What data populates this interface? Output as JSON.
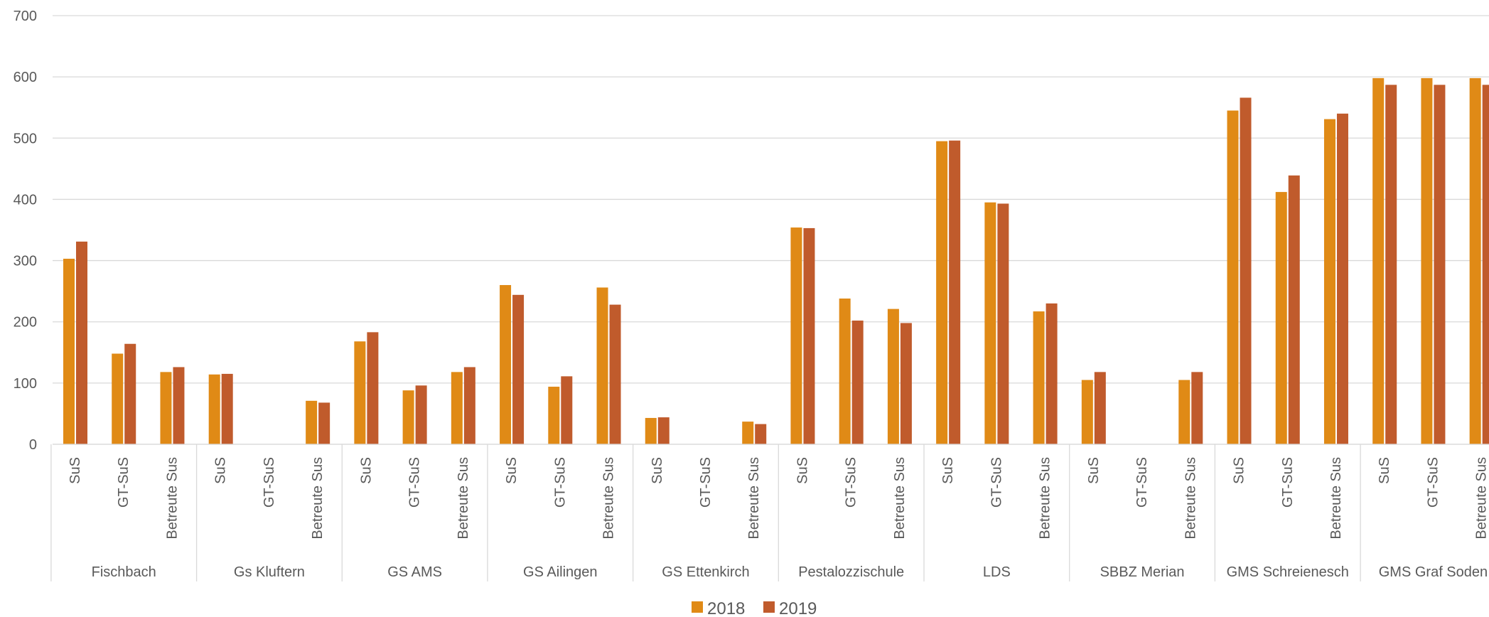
{
  "chart_data": {
    "type": "bar",
    "title": "",
    "xlabel": "",
    "ylabel": "",
    "ylim": [
      0,
      700
    ],
    "yticks": [
      0,
      100,
      200,
      300,
      400,
      500,
      600,
      700
    ],
    "grid": true,
    "legend_position": "bottom",
    "groups": [
      "Fischbach",
      "Gs Kluftern",
      "GS AMS",
      "GS Ailingen",
      "GS Ettenkirch",
      "Pestalozzischule",
      "LDS",
      "SBBZ Merian",
      "GMS Schreienesch",
      "GMS Graf Soden"
    ],
    "subcategories": [
      "SuS",
      "GT-SuS",
      "Betreute  Sus"
    ],
    "series": [
      {
        "name": "2018",
        "color": "#E08A16",
        "values": [
          303,
          148,
          118,
          114,
          0,
          71,
          168,
          88,
          118,
          260,
          94,
          256,
          43,
          0,
          37,
          354,
          238,
          221,
          495,
          395,
          217,
          105,
          0,
          105,
          545,
          412,
          531,
          598,
          598,
          598
        ]
      },
      {
        "name": "2019",
        "color": "#C05B2C",
        "values": [
          331,
          164,
          126,
          115,
          0,
          68,
          183,
          96,
          126,
          244,
          111,
          228,
          44,
          0,
          33,
          353,
          202,
          198,
          496,
          393,
          230,
          118,
          0,
          118,
          566,
          439,
          540,
          587,
          587,
          587
        ]
      }
    ]
  }
}
